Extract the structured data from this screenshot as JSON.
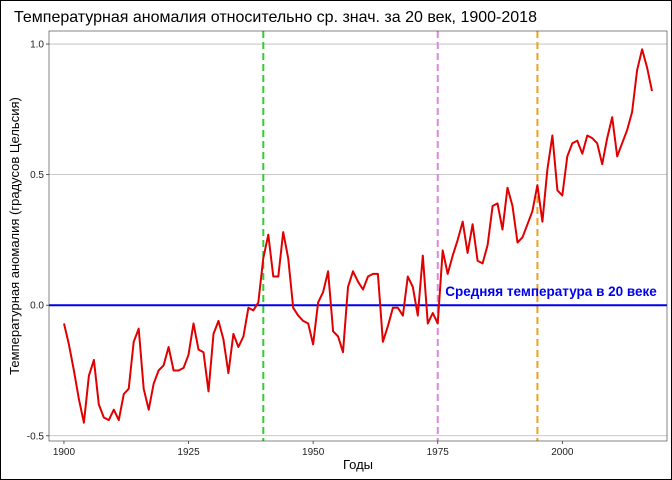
{
  "chart_data": {
    "type": "line",
    "title": "Температурная аномалия относительно ср. знач. за 20 век, 1900-2018",
    "xlabel": "Годы",
    "ylabel": "Температурная аномалия (градусов Цельсия)",
    "xlim": [
      1897,
      2021
    ],
    "ylim": [
      -0.52,
      1.05
    ],
    "xticks": [
      1900,
      1925,
      1950,
      1975,
      2000
    ],
    "xtick_labels": [
      "1900",
      "1925",
      "1950",
      "1975",
      "2000"
    ],
    "yticks": [
      -0.5,
      0.0,
      0.5,
      1.0
    ],
    "ytick_labels": [
      "-0.5",
      "0.0",
      "0.5",
      "1.0"
    ],
    "grid": true,
    "series": [
      {
        "color": "#e00000",
        "x": [
          1900,
          1901,
          1902,
          1903,
          1904,
          1905,
          1906,
          1907,
          1908,
          1909,
          1910,
          1911,
          1912,
          1913,
          1914,
          1915,
          1916,
          1917,
          1918,
          1919,
          1920,
          1921,
          1922,
          1923,
          1924,
          1925,
          1926,
          1927,
          1928,
          1929,
          1930,
          1931,
          1932,
          1933,
          1934,
          1935,
          1936,
          1937,
          1938,
          1939,
          1940,
          1941,
          1942,
          1943,
          1944,
          1945,
          1946,
          1947,
          1948,
          1949,
          1950,
          1951,
          1952,
          1953,
          1954,
          1955,
          1956,
          1957,
          1958,
          1959,
          1960,
          1961,
          1962,
          1963,
          1964,
          1965,
          1966,
          1967,
          1968,
          1969,
          1970,
          1971,
          1972,
          1973,
          1974,
          1975,
          1976,
          1977,
          1978,
          1979,
          1980,
          1981,
          1982,
          1983,
          1984,
          1985,
          1986,
          1987,
          1988,
          1989,
          1990,
          1991,
          1992,
          1993,
          1994,
          1995,
          1996,
          1997,
          1998,
          1999,
          2000,
          2001,
          2002,
          2003,
          2004,
          2005,
          2006,
          2007,
          2008,
          2009,
          2010,
          2011,
          2012,
          2013,
          2014,
          2015,
          2016,
          2017,
          2018
        ],
        "values": [
          -0.07,
          -0.15,
          -0.25,
          -0.36,
          -0.45,
          -0.27,
          -0.21,
          -0.38,
          -0.43,
          -0.44,
          -0.4,
          -0.44,
          -0.34,
          -0.32,
          -0.14,
          -0.09,
          -0.32,
          -0.4,
          -0.3,
          -0.25,
          -0.23,
          -0.16,
          -0.25,
          -0.25,
          -0.24,
          -0.19,
          -0.07,
          -0.17,
          -0.18,
          -0.33,
          -0.11,
          -0.06,
          -0.13,
          -0.26,
          -0.11,
          -0.16,
          -0.12,
          -0.01,
          -0.02,
          0.01,
          0.18,
          0.27,
          0.11,
          0.11,
          0.28,
          0.18,
          -0.01,
          -0.04,
          -0.06,
          -0.07,
          -0.15,
          0.01,
          0.05,
          0.13,
          -0.1,
          -0.12,
          -0.18,
          0.07,
          0.13,
          0.09,
          0.06,
          0.11,
          0.12,
          0.12,
          -0.14,
          -0.08,
          -0.01,
          -0.01,
          -0.04,
          0.11,
          0.07,
          -0.04,
          0.19,
          -0.07,
          -0.03,
          -0.07,
          0.21,
          0.12,
          0.19,
          0.25,
          0.32,
          0.2,
          0.31,
          0.17,
          0.16,
          0.23,
          0.38,
          0.39,
          0.29,
          0.45,
          0.38,
          0.24,
          0.26,
          0.31,
          0.36,
          0.46,
          0.32,
          0.52,
          0.65,
          0.44,
          0.42,
          0.57,
          0.62,
          0.63,
          0.58,
          0.65,
          0.64,
          0.62,
          0.54,
          0.64,
          0.72,
          0.57,
          0.62,
          0.67,
          0.74,
          0.9,
          0.98,
          0.91,
          0.82
        ]
      }
    ],
    "vlines": [
      {
        "x": 1940,
        "color": "#33cc33"
      },
      {
        "x": 1975,
        "color": "#dd88dd"
      },
      {
        "x": 1995,
        "color": "#f0a020"
      }
    ],
    "hline": {
      "y": 0.0,
      "color": "#0000ee"
    },
    "annotation": {
      "text": "Средняя температура в 20 веке",
      "x": 1976.5,
      "y": 0.035,
      "color": "#0000ee"
    }
  }
}
